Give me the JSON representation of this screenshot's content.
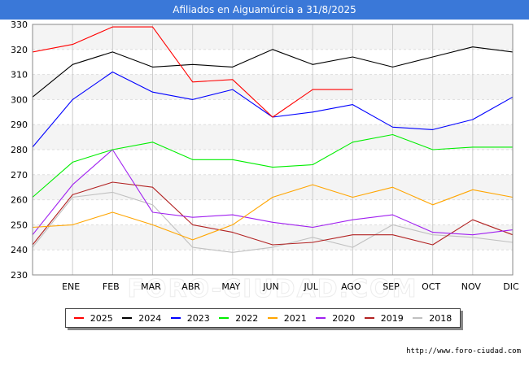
{
  "chart_data": {
    "type": "line",
    "title": "Afiliados en Aiguamúrcia a 31/8/2025",
    "categories": [
      "ENE",
      "FEB",
      "MAR",
      "ABR",
      "MAY",
      "JUN",
      "JUL",
      "AGO",
      "SEP",
      "OCT",
      "NOV",
      "DIC"
    ],
    "ylim": [
      230,
      330
    ],
    "yticks": [
      230,
      240,
      250,
      260,
      270,
      280,
      290,
      300,
      310,
      320,
      330
    ],
    "grid": true,
    "legend_position": "bottom",
    "series": [
      {
        "name": "2025",
        "color": "#ff0000",
        "start": 319,
        "values": [
          322,
          329,
          329,
          307,
          308,
          293,
          304,
          304,
          null,
          null,
          null,
          null
        ]
      },
      {
        "name": "2024",
        "color": "#000000",
        "start": 301,
        "values": [
          314,
          319,
          313,
          314,
          313,
          320,
          314,
          317,
          313,
          317,
          321,
          319
        ]
      },
      {
        "name": "2023",
        "color": "#0000ff",
        "start": 281,
        "values": [
          300,
          311,
          303,
          300,
          304,
          293,
          295,
          298,
          289,
          288,
          292,
          301
        ]
      },
      {
        "name": "2022",
        "color": "#00ee00",
        "start": 261,
        "values": [
          275,
          280,
          283,
          276,
          276,
          273,
          274,
          283,
          286,
          280,
          281,
          281
        ]
      },
      {
        "name": "2021",
        "color": "#ffa500",
        "start": 249,
        "values": [
          250,
          255,
          250,
          244,
          250,
          261,
          266,
          261,
          265,
          258,
          264,
          261
        ]
      },
      {
        "name": "2020",
        "color": "#a020f0",
        "start": 246,
        "values": [
          266,
          280,
          255,
          253,
          254,
          251,
          249,
          252,
          254,
          247,
          246,
          248
        ]
      },
      {
        "name": "2019",
        "color": "#b22222",
        "start": 242,
        "values": [
          262,
          267,
          265,
          250,
          247,
          242,
          243,
          246,
          246,
          242,
          252,
          246
        ]
      },
      {
        "name": "2018",
        "color": "#c0c0c0",
        "start": 241,
        "values": [
          261,
          263,
          258,
          241,
          239,
          241,
          245,
          241,
          250,
          246,
          245,
          243
        ]
      }
    ],
    "source": "http://www.foro-ciudad.com",
    "watermark": "FORO-CIUDAD.COM"
  }
}
